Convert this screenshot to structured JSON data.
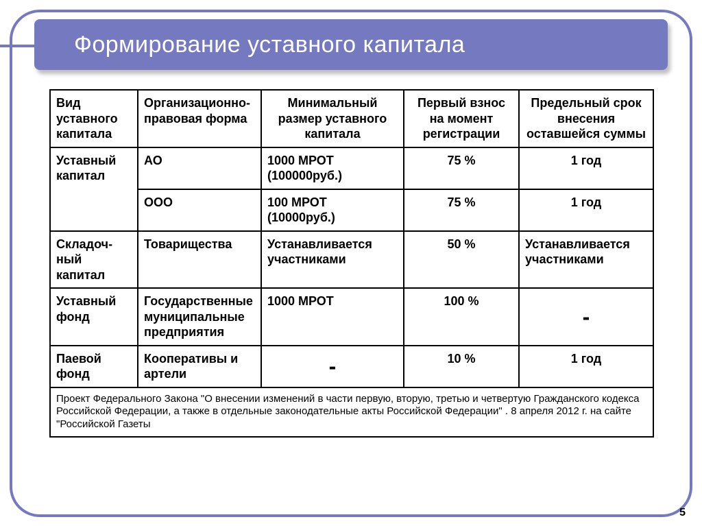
{
  "title": "Формирование уставного капитала",
  "page_number": "5",
  "colors": {
    "accent": "#7579c0",
    "border": "#000000",
    "title_text": "#ffffff",
    "background": "#ffffff"
  },
  "table": {
    "headers": {
      "c0": "Вид уставного капитала",
      "c1": "Организационно-правовая форма",
      "c2": "Минимальный размер уставного капитала",
      "c3": "Первый взнос на момент регистрации",
      "c4": "Предельный срок внесения оставшейся суммы"
    },
    "rows": {
      "r0": {
        "capital_type": "Уставный капитал",
        "form": "АО",
        "min_size": "1000 МРОТ (100000руб.)",
        "first_payment": "75 %",
        "deadline": "1 год"
      },
      "r1": {
        "form": "ООО",
        "min_size": "100 МРОТ (10000руб.)",
        "first_payment": "75 %",
        "deadline": "1 год"
      },
      "r2": {
        "capital_type": "Складоч-ный капитал",
        "form": "Товарищества",
        "min_size": "Устанавливается участниками",
        "first_payment": "50 %",
        "deadline": "Устанавливается участниками"
      },
      "r3": {
        "capital_type": "Уставный фонд",
        "form": "Государственные муниципальные предприятия",
        "min_size": "1000 МРОТ",
        "first_payment": "100 %",
        "deadline": "-"
      },
      "r4": {
        "capital_type": "Паевой фонд",
        "form": "Кооперативы и артели",
        "min_size": "-",
        "first_payment": "10 %",
        "deadline": "1 год"
      }
    },
    "footnote": "Проект Федерального Закона \"О внесении изменений в части первую, вторую, третью и четвертую Гражданского кодекса Российской Федерации, а также в отдельные законодательные акты Российской Федерации\" . 8 апреля 2012 г. на сайте \"Российской Газеты"
  }
}
